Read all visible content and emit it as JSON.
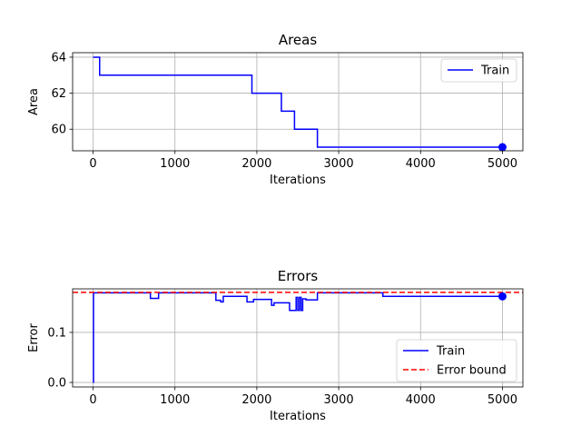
{
  "chart_data": [
    {
      "type": "line",
      "title": "Areas",
      "xlabel": "Iterations",
      "ylabel": "Area",
      "xlim": [
        -250,
        5250
      ],
      "ylim": [
        58.8,
        64.25
      ],
      "xticks": [
        0,
        1000,
        2000,
        3000,
        4000,
        5000
      ],
      "yticks": [
        60,
        62,
        64
      ],
      "grid": true,
      "legend_position": "top-right",
      "series": [
        {
          "name": "Train",
          "color": "#0000ff",
          "style": "solid",
          "step": true,
          "x": [
            0,
            80,
            1940,
            2300,
            2460,
            2740,
            5000
          ],
          "y": [
            64,
            63,
            62,
            61,
            60,
            59,
            59
          ],
          "end_marker": true
        }
      ]
    },
    {
      "type": "line",
      "title": "Errors",
      "xlabel": "Iterations",
      "ylabel": "Error",
      "xlim": [
        -250,
        5250
      ],
      "ylim": [
        -0.009,
        0.187
      ],
      "xticks": [
        0,
        1000,
        2000,
        3000,
        4000,
        5000
      ],
      "yticks": [
        0.0,
        0.1
      ],
      "ytick_labels": [
        "0.0",
        "0.1"
      ],
      "grid": true,
      "legend_position": "lower-right",
      "series": [
        {
          "name": "Train",
          "color": "#0000ff",
          "style": "solid",
          "step": true,
          "x": [
            0,
            5,
            700,
            800,
            1500,
            1560,
            1590,
            1880,
            1960,
            2010,
            2180,
            2210,
            2400,
            2480,
            2500,
            2520,
            2540,
            2560,
            2600,
            2740,
            3540,
            5000
          ],
          "y": [
            0.0,
            0.179,
            0.168,
            0.179,
            0.164,
            0.161,
            0.172,
            0.161,
            0.166,
            0.166,
            0.154,
            0.159,
            0.144,
            0.17,
            0.144,
            0.17,
            0.144,
            0.167,
            0.165,
            0.179,
            0.172,
            0.172
          ],
          "end_marker": true
        },
        {
          "name": "Error bound",
          "color": "#ff0000",
          "style": "dashed",
          "constant_y": 0.18
        }
      ]
    }
  ]
}
